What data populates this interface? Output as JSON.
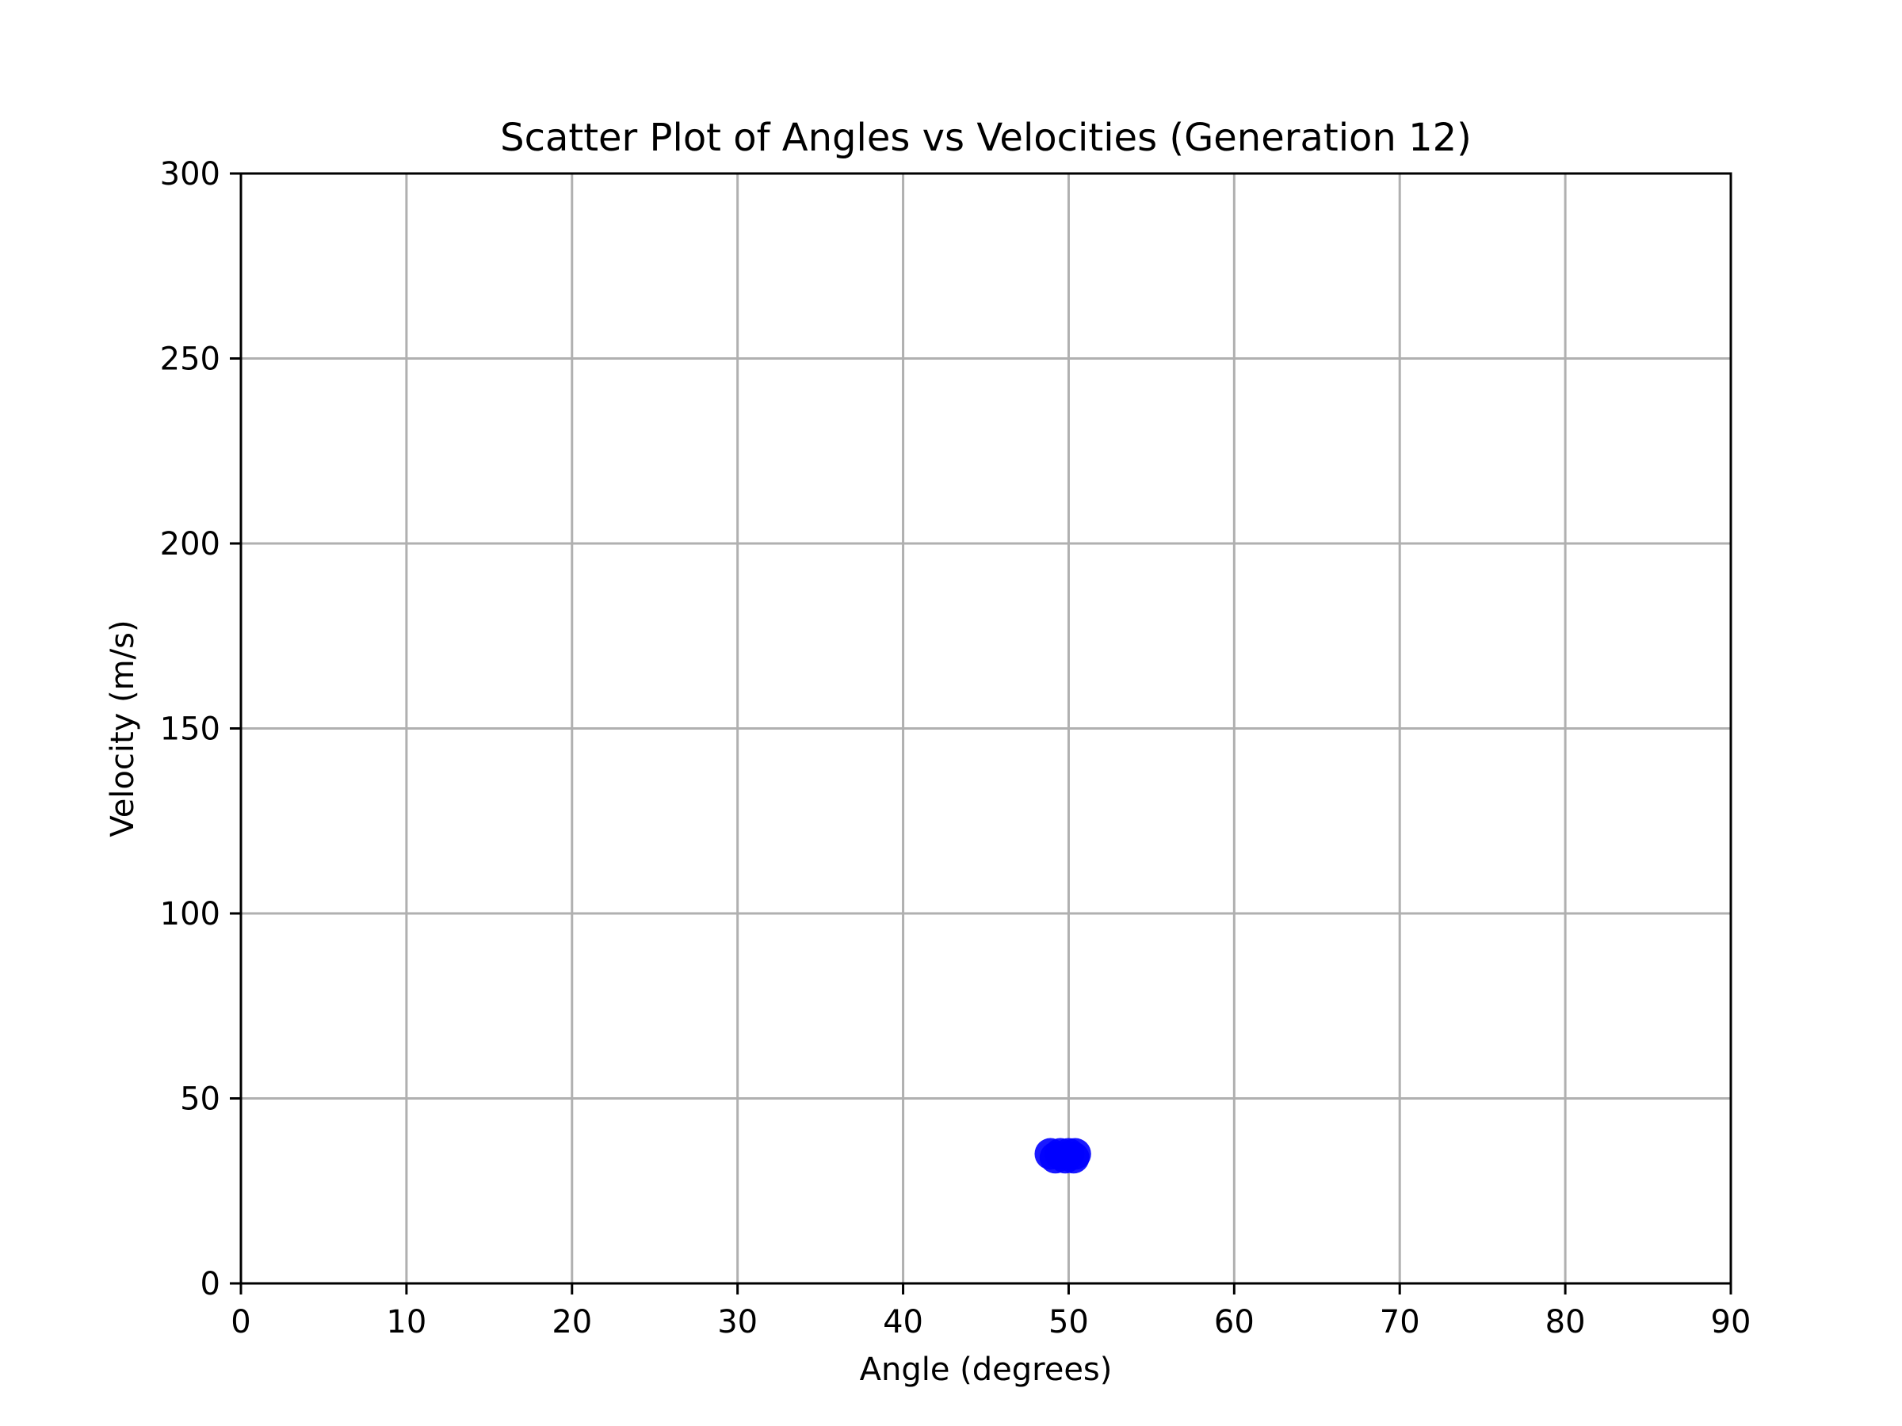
{
  "chart_data": {
    "type": "scatter",
    "title": "Scatter Plot of Angles vs Velocities (Generation 12)",
    "xlabel": "Angle (degrees)",
    "ylabel": "Velocity (m/s)",
    "xlim": [
      0,
      90
    ],
    "ylim": [
      0,
      300
    ],
    "xticks": [
      0,
      10,
      20,
      30,
      40,
      50,
      60,
      70,
      80,
      90
    ],
    "yticks": [
      0,
      50,
      100,
      150,
      200,
      250,
      300
    ],
    "grid": true,
    "legend": false,
    "series": [
      {
        "color": "#0000ff",
        "points": [
          {
            "x": 48.9,
            "y": 35
          },
          {
            "x": 49.2,
            "y": 34
          },
          {
            "x": 49.5,
            "y": 35
          },
          {
            "x": 49.8,
            "y": 34
          },
          {
            "x": 50.0,
            "y": 35
          },
          {
            "x": 50.3,
            "y": 34
          },
          {
            "x": 50.4,
            "y": 35
          }
        ]
      }
    ]
  }
}
